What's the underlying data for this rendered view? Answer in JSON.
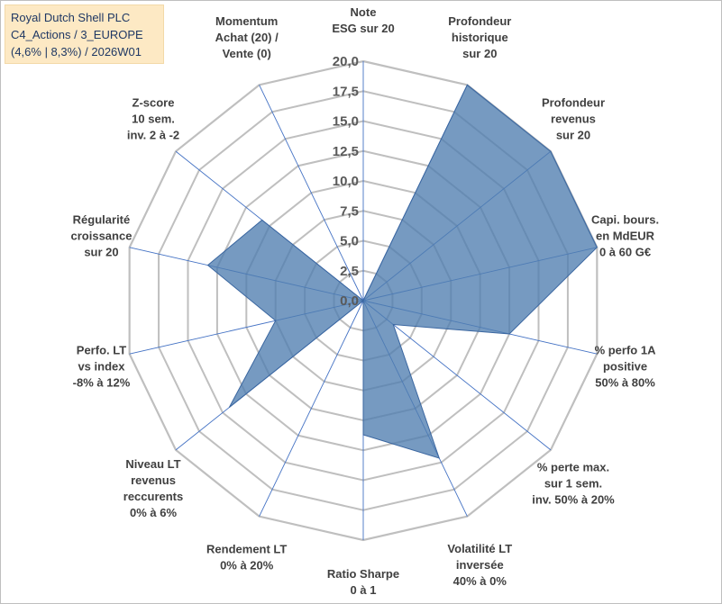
{
  "header": {
    "line1": "Royal Dutch Shell PLC",
    "line2": "C4_Actions / 3_EUROPE",
    "line3": "(4,6% | 8,3%) / 2026W01"
  },
  "chart_data": {
    "type": "radar",
    "title": "Royal Dutch Shell PLC",
    "rmin": 0,
    "rmax": 20,
    "tick_step": 2.5,
    "tick_labels": [
      "0,0",
      "2,5",
      "5,0",
      "7,5",
      "10,0",
      "12,5",
      "15,0",
      "17,5",
      "20,0"
    ],
    "grid": true,
    "colors": {
      "fill": "#4f7db0",
      "stroke": "#3a66a0",
      "grid": "#bfbfbf",
      "spoke": "#4472c4"
    },
    "axes": [
      {
        "lines": [
          "Note",
          "ESG sur 20"
        ]
      },
      {
        "lines": [
          "Profondeur",
          "historique",
          "sur 20"
        ]
      },
      {
        "lines": [
          "Profondeur",
          "revenus",
          "sur 20"
        ]
      },
      {
        "lines": [
          "Capi. bours.",
          "en MdEUR",
          "0 à 60 G€"
        ]
      },
      {
        "lines": [
          "% perfo 1A",
          "positive",
          "50% à 80%"
        ]
      },
      {
        "lines": [
          "% perte max.",
          "sur 1 sem.",
          "inv. 50% à 20%"
        ]
      },
      {
        "lines": [
          "Volatilité LT",
          "inversée",
          "40% à 0%"
        ]
      },
      {
        "lines": [
          "Ratio Sharpe",
          "0 à 1"
        ]
      },
      {
        "lines": [
          "Rendement LT",
          "0% à 20%"
        ]
      },
      {
        "lines": [
          "Niveau LT",
          "revenus",
          "reccurents",
          "0% à 6%"
        ]
      },
      {
        "lines": [
          "Perfo. LT",
          "vs index",
          "-8% à 12%"
        ]
      },
      {
        "lines": [
          "Régularité",
          "croissance",
          "sur 20"
        ]
      },
      {
        "lines": [
          "Z-score",
          "10 sem.",
          "inv. 2 à -2"
        ]
      },
      {
        "lines": [
          "Momentum",
          "Achat (20) /",
          "Vente (0)"
        ]
      }
    ],
    "series": [
      {
        "name": "Royal Dutch Shell PLC",
        "values": [
          0,
          20,
          20,
          20,
          12.5,
          3.2,
          14.6,
          11.2,
          0,
          14.3,
          7.5,
          13.3,
          10.8,
          0
        ]
      }
    ]
  }
}
